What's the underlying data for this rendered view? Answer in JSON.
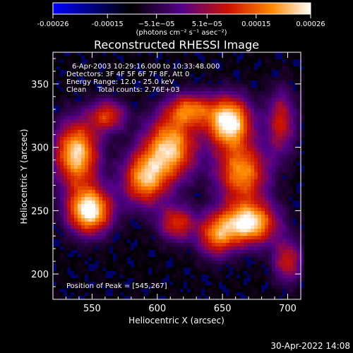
{
  "chart_data": {
    "type": "heatmap",
    "title": "Reconstructed RHESSI Image",
    "xlabel": "Heliocentric X (arcsec)",
    "ylabel": "Heliocentric Y (arcsec)",
    "xlim": [
      520,
      710
    ],
    "ylim": [
      180,
      375
    ],
    "x_ticks": [
      550,
      600,
      650,
      700
    ],
    "y_ticks": [
      200,
      250,
      300,
      350
    ],
    "colorbar": {
      "range": [
        -0.00026,
        0.00026
      ],
      "tick_values": [
        -0.00026,
        -0.00015,
        -5.1e-05,
        5.1e-05,
        0.00015,
        0.00026
      ],
      "tick_labels": [
        "-0.00026",
        "-0.00015",
        "−5.1e−05",
        "5.1e−05",
        "0.00015",
        "0.00026"
      ],
      "unit_label": "(photons cm⁻² s⁻¹ asec⁻²)",
      "colormap": [
        "#0000ff",
        "#000000",
        "#550088",
        "#cc1100",
        "#ff8800",
        "#ffffff"
      ]
    },
    "info_lines": [
      "6-Apr-2003 10:29:16.000 to 10:33:48.000",
      "Detectors: 3F 4F 5F 6F 7F 8F, Att 0",
      "Energy Range: 12.0 - 25.0 keV",
      "Clean     Total counts: 2.76E+03"
    ],
    "peak_label": "Position of Peak = [545,267]",
    "peak_position": [
      545,
      267
    ],
    "bright_regions": [
      {
        "x": 548,
        "y": 250,
        "amp": 1.0,
        "sx": 12,
        "sy": 13
      },
      {
        "x": 538,
        "y": 295,
        "amp": 0.9,
        "sx": 12,
        "sy": 18
      },
      {
        "x": 562,
        "y": 325,
        "amp": 0.55,
        "sx": 10,
        "sy": 9
      },
      {
        "x": 590,
        "y": 275,
        "amp": 0.75,
        "sx": 12,
        "sy": 15
      },
      {
        "x": 610,
        "y": 300,
        "amp": 0.85,
        "sx": 14,
        "sy": 18
      },
      {
        "x": 625,
        "y": 330,
        "amp": 0.6,
        "sx": 12,
        "sy": 9
      },
      {
        "x": 655,
        "y": 320,
        "amp": 1.0,
        "sx": 12,
        "sy": 14
      },
      {
        "x": 665,
        "y": 280,
        "amp": 0.75,
        "sx": 14,
        "sy": 16
      },
      {
        "x": 670,
        "y": 240,
        "amp": 0.95,
        "sx": 15,
        "sy": 12
      },
      {
        "x": 645,
        "y": 230,
        "amp": 0.6,
        "sx": 10,
        "sy": 12
      },
      {
        "x": 615,
        "y": 240,
        "amp": 0.55,
        "sx": 10,
        "sy": 10
      },
      {
        "x": 695,
        "y": 320,
        "amp": 0.5,
        "sx": 8,
        "sy": 18
      },
      {
        "x": 700,
        "y": 210,
        "amp": 0.5,
        "sx": 8,
        "sy": 12
      }
    ]
  },
  "footer": {
    "timestamp": "30-Apr-2022 14:08"
  }
}
